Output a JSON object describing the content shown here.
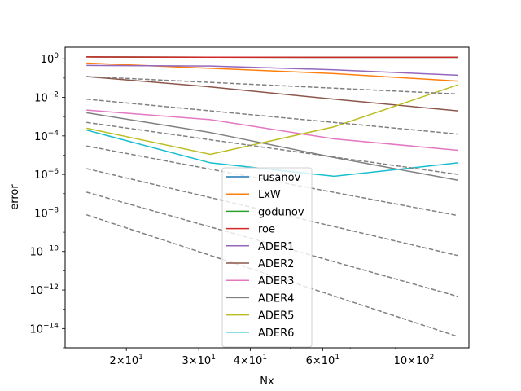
{
  "chart_data": {
    "type": "line",
    "xlabel": "Nx",
    "ylabel": "error",
    "xscale": "log",
    "yscale": "log",
    "xlim": [
      14.2,
      136
    ],
    "ylim": [
      1e-15,
      4
    ],
    "grid": false,
    "legend_position": "lower-center",
    "x_ticks": [
      {
        "value": 20,
        "base": "2",
        "exp": "1"
      },
      {
        "value": 30,
        "base": "3",
        "exp": "1"
      },
      {
        "value": 40,
        "base": "4",
        "exp": "1"
      },
      {
        "value": 60,
        "base": "6",
        "exp": "1"
      },
      {
        "value": 100,
        "base": "10",
        "exp": "2"
      }
    ],
    "x_minor_ticks": [
      50,
      70,
      80,
      90
    ],
    "y_ticks": [
      {
        "value": 1,
        "exp": "0"
      },
      {
        "value": 0.01,
        "exp": "−2"
      },
      {
        "value": 0.0001,
        "exp": "−4"
      },
      {
        "value": 1e-06,
        "exp": "−6"
      },
      {
        "value": 1e-08,
        "exp": "−8"
      },
      {
        "value": 1e-10,
        "exp": "−10"
      },
      {
        "value": 1e-12,
        "exp": "−12"
      },
      {
        "value": 1e-14,
        "exp": "−14"
      }
    ],
    "series": [
      {
        "name": "rusanov",
        "color": "#1f77b4",
        "dashed": false,
        "x": [
          16,
          32,
          64,
          128
        ],
        "y": [
          1.25,
          1.22,
          1.2,
          1.2
        ]
      },
      {
        "name": "LxW",
        "color": "#ff7f0e",
        "dashed": false,
        "x": [
          16,
          32,
          64,
          128
        ],
        "y": [
          0.6,
          0.32,
          0.17,
          0.07
        ]
      },
      {
        "name": "godunov",
        "color": "#2ca02c",
        "dashed": false,
        "x": [
          16,
          32,
          64,
          128
        ],
        "y": [
          1.25,
          1.22,
          1.2,
          1.2
        ]
      },
      {
        "name": "roe",
        "color": "#d62728",
        "dashed": false,
        "x": [
          16,
          32,
          64,
          128
        ],
        "y": [
          1.25,
          1.22,
          1.2,
          1.2
        ]
      },
      {
        "name": "ADER1",
        "color": "#9467bd",
        "dashed": false,
        "x": [
          16,
          32,
          64,
          128
        ],
        "y": [
          0.45,
          0.42,
          0.27,
          0.14
        ]
      },
      {
        "name": "ADER2",
        "color": "#8c564b",
        "dashed": false,
        "x": [
          16,
          32,
          64,
          128
        ],
        "y": [
          0.12,
          0.035,
          0.008,
          0.002
        ]
      },
      {
        "name": "ADER3",
        "color": "#e377c2",
        "dashed": false,
        "x": [
          16,
          32,
          64,
          128
        ],
        "y": [
          0.0022,
          0.0007,
          7e-05,
          1.8e-05
        ]
      },
      {
        "name": "ADER4",
        "color": "#7f7f7f",
        "dashed": false,
        "x": [
          16,
          32,
          64,
          128
        ],
        "y": [
          0.0016,
          0.00015,
          7.5e-06,
          5e-07
        ]
      },
      {
        "name": "ADER5",
        "color": "#bcbd22",
        "dashed": false,
        "x": [
          16,
          32,
          64,
          128
        ],
        "y": [
          0.00025,
          1.1e-05,
          0.0003,
          0.045
        ]
      },
      {
        "name": "ADER6",
        "color": "#17becf",
        "dashed": false,
        "x": [
          16,
          32,
          64,
          128
        ],
        "y": [
          0.0002,
          4e-06,
          8e-07,
          4e-06
        ]
      },
      {
        "name": "",
        "color": "#808080",
        "dashed": true,
        "x": [
          16,
          128
        ],
        "y": [
          0.12,
          0.015
        ]
      },
      {
        "name": "",
        "color": "#808080",
        "dashed": true,
        "x": [
          16,
          128
        ],
        "y": [
          0.008,
          0.000125
        ]
      },
      {
        "name": "",
        "color": "#808080",
        "dashed": true,
        "x": [
          16,
          128
        ],
        "y": [
          0.0005,
          1e-06
        ]
      },
      {
        "name": "",
        "color": "#808080",
        "dashed": true,
        "x": [
          16,
          128
        ],
        "y": [
          3e-05,
          7.3e-09
        ]
      },
      {
        "name": "",
        "color": "#808080",
        "dashed": true,
        "x": [
          16,
          128
        ],
        "y": [
          2e-06,
          6.1e-11
        ]
      },
      {
        "name": "",
        "color": "#808080",
        "dashed": true,
        "x": [
          16,
          128
        ],
        "y": [
          1.2e-07,
          4.6e-13
        ]
      },
      {
        "name": "",
        "color": "#808080",
        "dashed": true,
        "x": [
          16,
          128
        ],
        "y": [
          8e-09,
          3.8e-15
        ]
      }
    ]
  }
}
